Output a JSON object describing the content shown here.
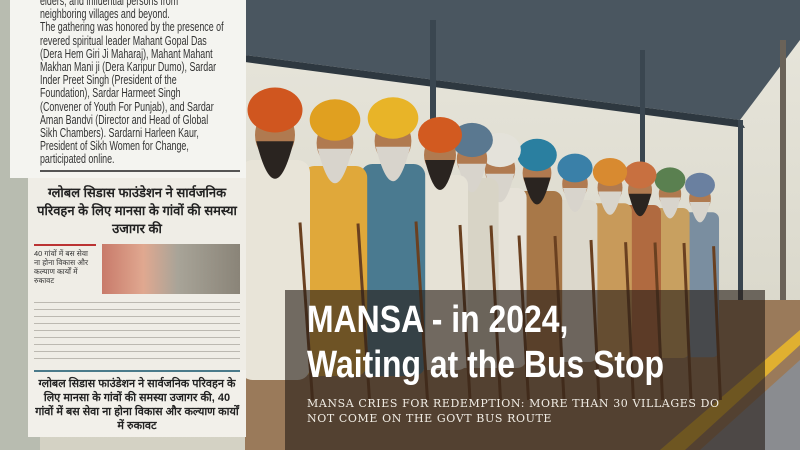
{
  "clipping_english": {
    "text": "elders, and influential persons from\nneighboring villages and beyond.\nThe gathering was honored by the presence of\nrevered spiritual leader Mahant Gopal Das\n(Dera Hem Giri Ji Maharaj), Mahant Mahant\nMakhan Mani ji (Dera Karipur Dumo), Sardar\nInder Preet Singh (President of the\nFoundation), Sardar Harmeet Singh\n(Convener of Youth For Punjab), and Sardar\nAman Bandvi (Director and Head of Global\nSikh Chambers). Sardarni Harleen Kaur,\nPresident of Sikh Women for Change,\nparticipated online."
  },
  "clipping_hindi": {
    "headline": "ग्लोबल सिडास फाउंडेशन ने सार्वजनिक परिवहन के लिए मानसा के गांवों की समस्या उजागर की",
    "subhead": "40 गांवों में बस सेवा ना होना विकास और कल्याण कार्यों में रुकावट"
  },
  "clipping_hindi_2": {
    "headline": "ग्लोबल सिडास फाउंडेशन ने सार्वजनिक परिवहन के लिए मानसा के गांवों की समस्या उजागर की, 40 गांवों में बस सेवा ना होना विकास और कल्याण कार्यों में रुकावट"
  },
  "overlay": {
    "headline_line1": "MANSA - in 2024,",
    "headline_line2": "Waiting at the Bus Stop",
    "subheadline": "MANSA CRIES FOR REDEMPTION: MORE THAN 30 VILLAGES DO NOT COME ON THE GOVT BUS ROUTE"
  },
  "colors": {
    "overlay_bg": "#281e19",
    "turbans": [
      "#d0561f",
      "#e0a020",
      "#e8b428",
      "#d25a20",
      "#5a7890",
      "#e4e2da",
      "#2a7fa0",
      "#3a80a8",
      "#d88a30",
      "#c87040",
      "#5a8050",
      "#6a80a0"
    ]
  }
}
